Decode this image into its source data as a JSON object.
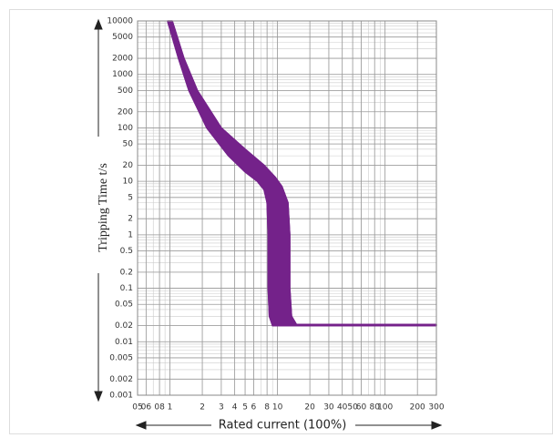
{
  "chart_data": {
    "type": "band",
    "x_label": "Rated current (100%)",
    "y_label": "Tripping Time t/s",
    "xscale": "log",
    "yscale": "log",
    "grid": true,
    "minor_grid": true,
    "xlim": [
      0.5,
      300
    ],
    "ylim": [
      0.001,
      10000
    ],
    "xticks": [
      {
        "value": 0.5,
        "label": "05"
      },
      {
        "value": 0.6,
        "label": "06"
      },
      {
        "value": 0.8,
        "label": "08"
      },
      1,
      2,
      3,
      4,
      5,
      6,
      8,
      10,
      20,
      30,
      40,
      50,
      60,
      80,
      100,
      200,
      300
    ],
    "yticks": [
      10000,
      5000,
      2000,
      1000,
      500,
      200,
      100,
      50,
      20,
      10,
      5,
      2,
      1,
      0.5,
      0.2,
      0.1,
      0.05,
      0.02,
      0.01,
      0.005,
      0.002,
      0.001
    ],
    "color": "#74228a",
    "series": [
      {
        "x": [
          0.95,
          1.2,
          1.5,
          2.2,
          3.5,
          5,
          6.5,
          7.5,
          8,
          8.2,
          8.2,
          8.4,
          9,
          300
        ],
        "values": [
          10000,
          2000,
          500,
          100,
          30,
          15,
          10,
          7,
          4,
          1,
          0.1,
          0.03,
          0.02,
          0.02
        ]
      },
      {
        "x": [
          1.05,
          1.35,
          1.8,
          3,
          5,
          7.5,
          9.5,
          11,
          12.5,
          13,
          13,
          13.5,
          15,
          300
        ],
        "values": [
          10000,
          2000,
          500,
          100,
          40,
          20,
          12,
          8,
          4,
          1,
          0.1,
          0.03,
          0.021,
          0.021
        ]
      }
    ]
  }
}
